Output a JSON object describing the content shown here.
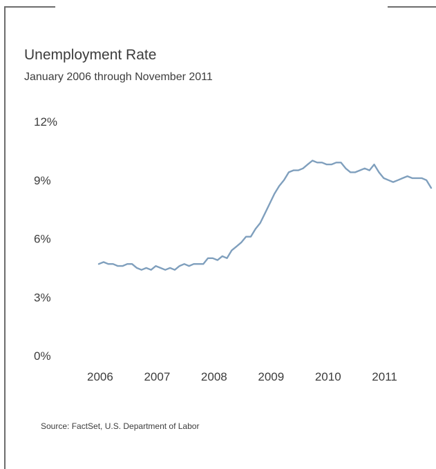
{
  "chart_data": {
    "type": "line",
    "title": "Unemployment Rate",
    "subtitle": "January 2006 through November 2011",
    "xlabel": "",
    "ylabel": "",
    "x_tick_labels": [
      "2006",
      "2007",
      "2008",
      "2009",
      "2010",
      "2011"
    ],
    "y_tick_labels": [
      "0%",
      "3%",
      "6%",
      "9%",
      "12%"
    ],
    "ylim": [
      0,
      12
    ],
    "xlim": [
      "2006-01",
      "2011-11"
    ],
    "grid": false,
    "line_color": "#7f9fbd",
    "series": [
      {
        "x": [
          "2006-01",
          "2006-02",
          "2006-03",
          "2006-04",
          "2006-05",
          "2006-06",
          "2006-07",
          "2006-08",
          "2006-09",
          "2006-10",
          "2006-11",
          "2006-12",
          "2007-01",
          "2007-02",
          "2007-03",
          "2007-04",
          "2007-05",
          "2007-06",
          "2007-07",
          "2007-08",
          "2007-09",
          "2007-10",
          "2007-11",
          "2007-12",
          "2008-01",
          "2008-02",
          "2008-03",
          "2008-04",
          "2008-05",
          "2008-06",
          "2008-07",
          "2008-08",
          "2008-09",
          "2008-10",
          "2008-11",
          "2008-12",
          "2009-01",
          "2009-02",
          "2009-03",
          "2009-04",
          "2009-05",
          "2009-06",
          "2009-07",
          "2009-08",
          "2009-09",
          "2009-10",
          "2009-11",
          "2009-12",
          "2010-01",
          "2010-02",
          "2010-03",
          "2010-04",
          "2010-05",
          "2010-06",
          "2010-07",
          "2010-08",
          "2010-09",
          "2010-10",
          "2010-11",
          "2010-12",
          "2011-01",
          "2011-02",
          "2011-03",
          "2011-04",
          "2011-05",
          "2011-06",
          "2011-07",
          "2011-08",
          "2011-09",
          "2011-10",
          "2011-11"
        ],
        "values": [
          4.7,
          4.8,
          4.7,
          4.7,
          4.6,
          4.6,
          4.7,
          4.7,
          4.5,
          4.4,
          4.5,
          4.4,
          4.6,
          4.5,
          4.4,
          4.5,
          4.4,
          4.6,
          4.7,
          4.6,
          4.7,
          4.7,
          4.7,
          5.0,
          5.0,
          4.9,
          5.1,
          5.0,
          5.4,
          5.6,
          5.8,
          6.1,
          6.1,
          6.5,
          6.8,
          7.3,
          7.8,
          8.3,
          8.7,
          9.0,
          9.4,
          9.5,
          9.5,
          9.6,
          9.8,
          10.0,
          9.9,
          9.9,
          9.8,
          9.8,
          9.9,
          9.9,
          9.6,
          9.4,
          9.4,
          9.5,
          9.6,
          9.5,
          9.8,
          9.4,
          9.1,
          9.0,
          8.9,
          9.0,
          9.1,
          9.2,
          9.1,
          9.1,
          9.1,
          9.0,
          8.6
        ]
      }
    ]
  },
  "footer": {
    "source": "Source: FactSet, U.S. Department of Labor"
  }
}
